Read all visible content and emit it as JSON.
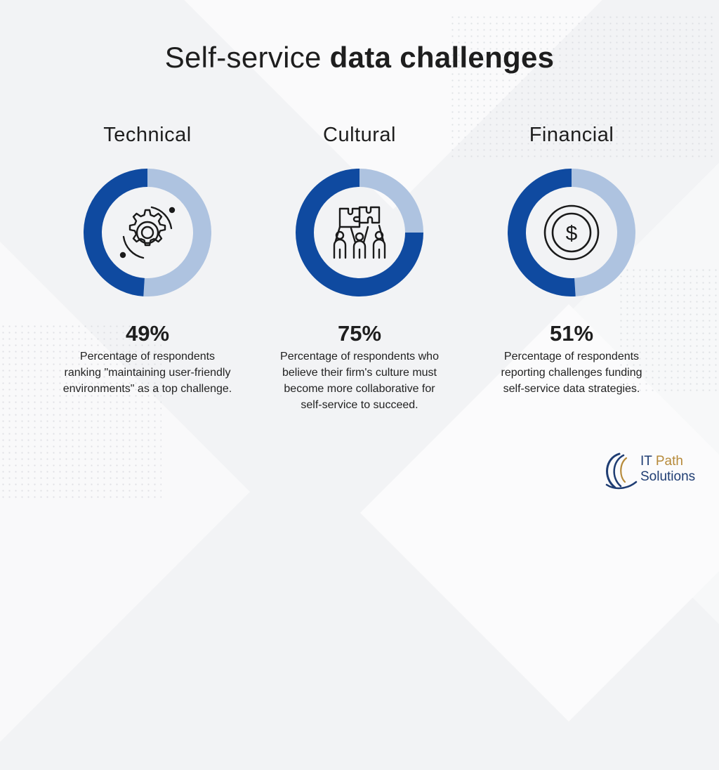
{
  "title": {
    "light": "Self-service ",
    "bold": "data challenges"
  },
  "colors": {
    "primary": "#0f4aa0",
    "secondary": "#aec3e0",
    "text": "#1e1e1e"
  },
  "chart_data": {
    "type": "pie",
    "variant": "donut",
    "charts": [
      {
        "category": "Technical",
        "value": 49,
        "display": "49%",
        "icon": "gear-cycle-icon",
        "description": [
          "Percentage of respondents",
          "ranking \"maintaining user-friendly",
          "environments\" as a top challenge."
        ]
      },
      {
        "category": "Cultural",
        "value": 75,
        "display": "75%",
        "icon": "teamwork-puzzle-icon",
        "description": [
          "Percentage of respondents who",
          "believe their firm's culture must",
          "become more collaborative for",
          "self-service to succeed."
        ]
      },
      {
        "category": "Financial",
        "value": 51,
        "display": "51%",
        "icon": "dollar-coin-icon",
        "description": [
          "Percentage of respondents",
          "reporting challenges funding",
          "self-service data strategies."
        ]
      }
    ]
  },
  "logo": {
    "line1a": "IT ",
    "line1b": "Path",
    "line2": "Solutions"
  }
}
